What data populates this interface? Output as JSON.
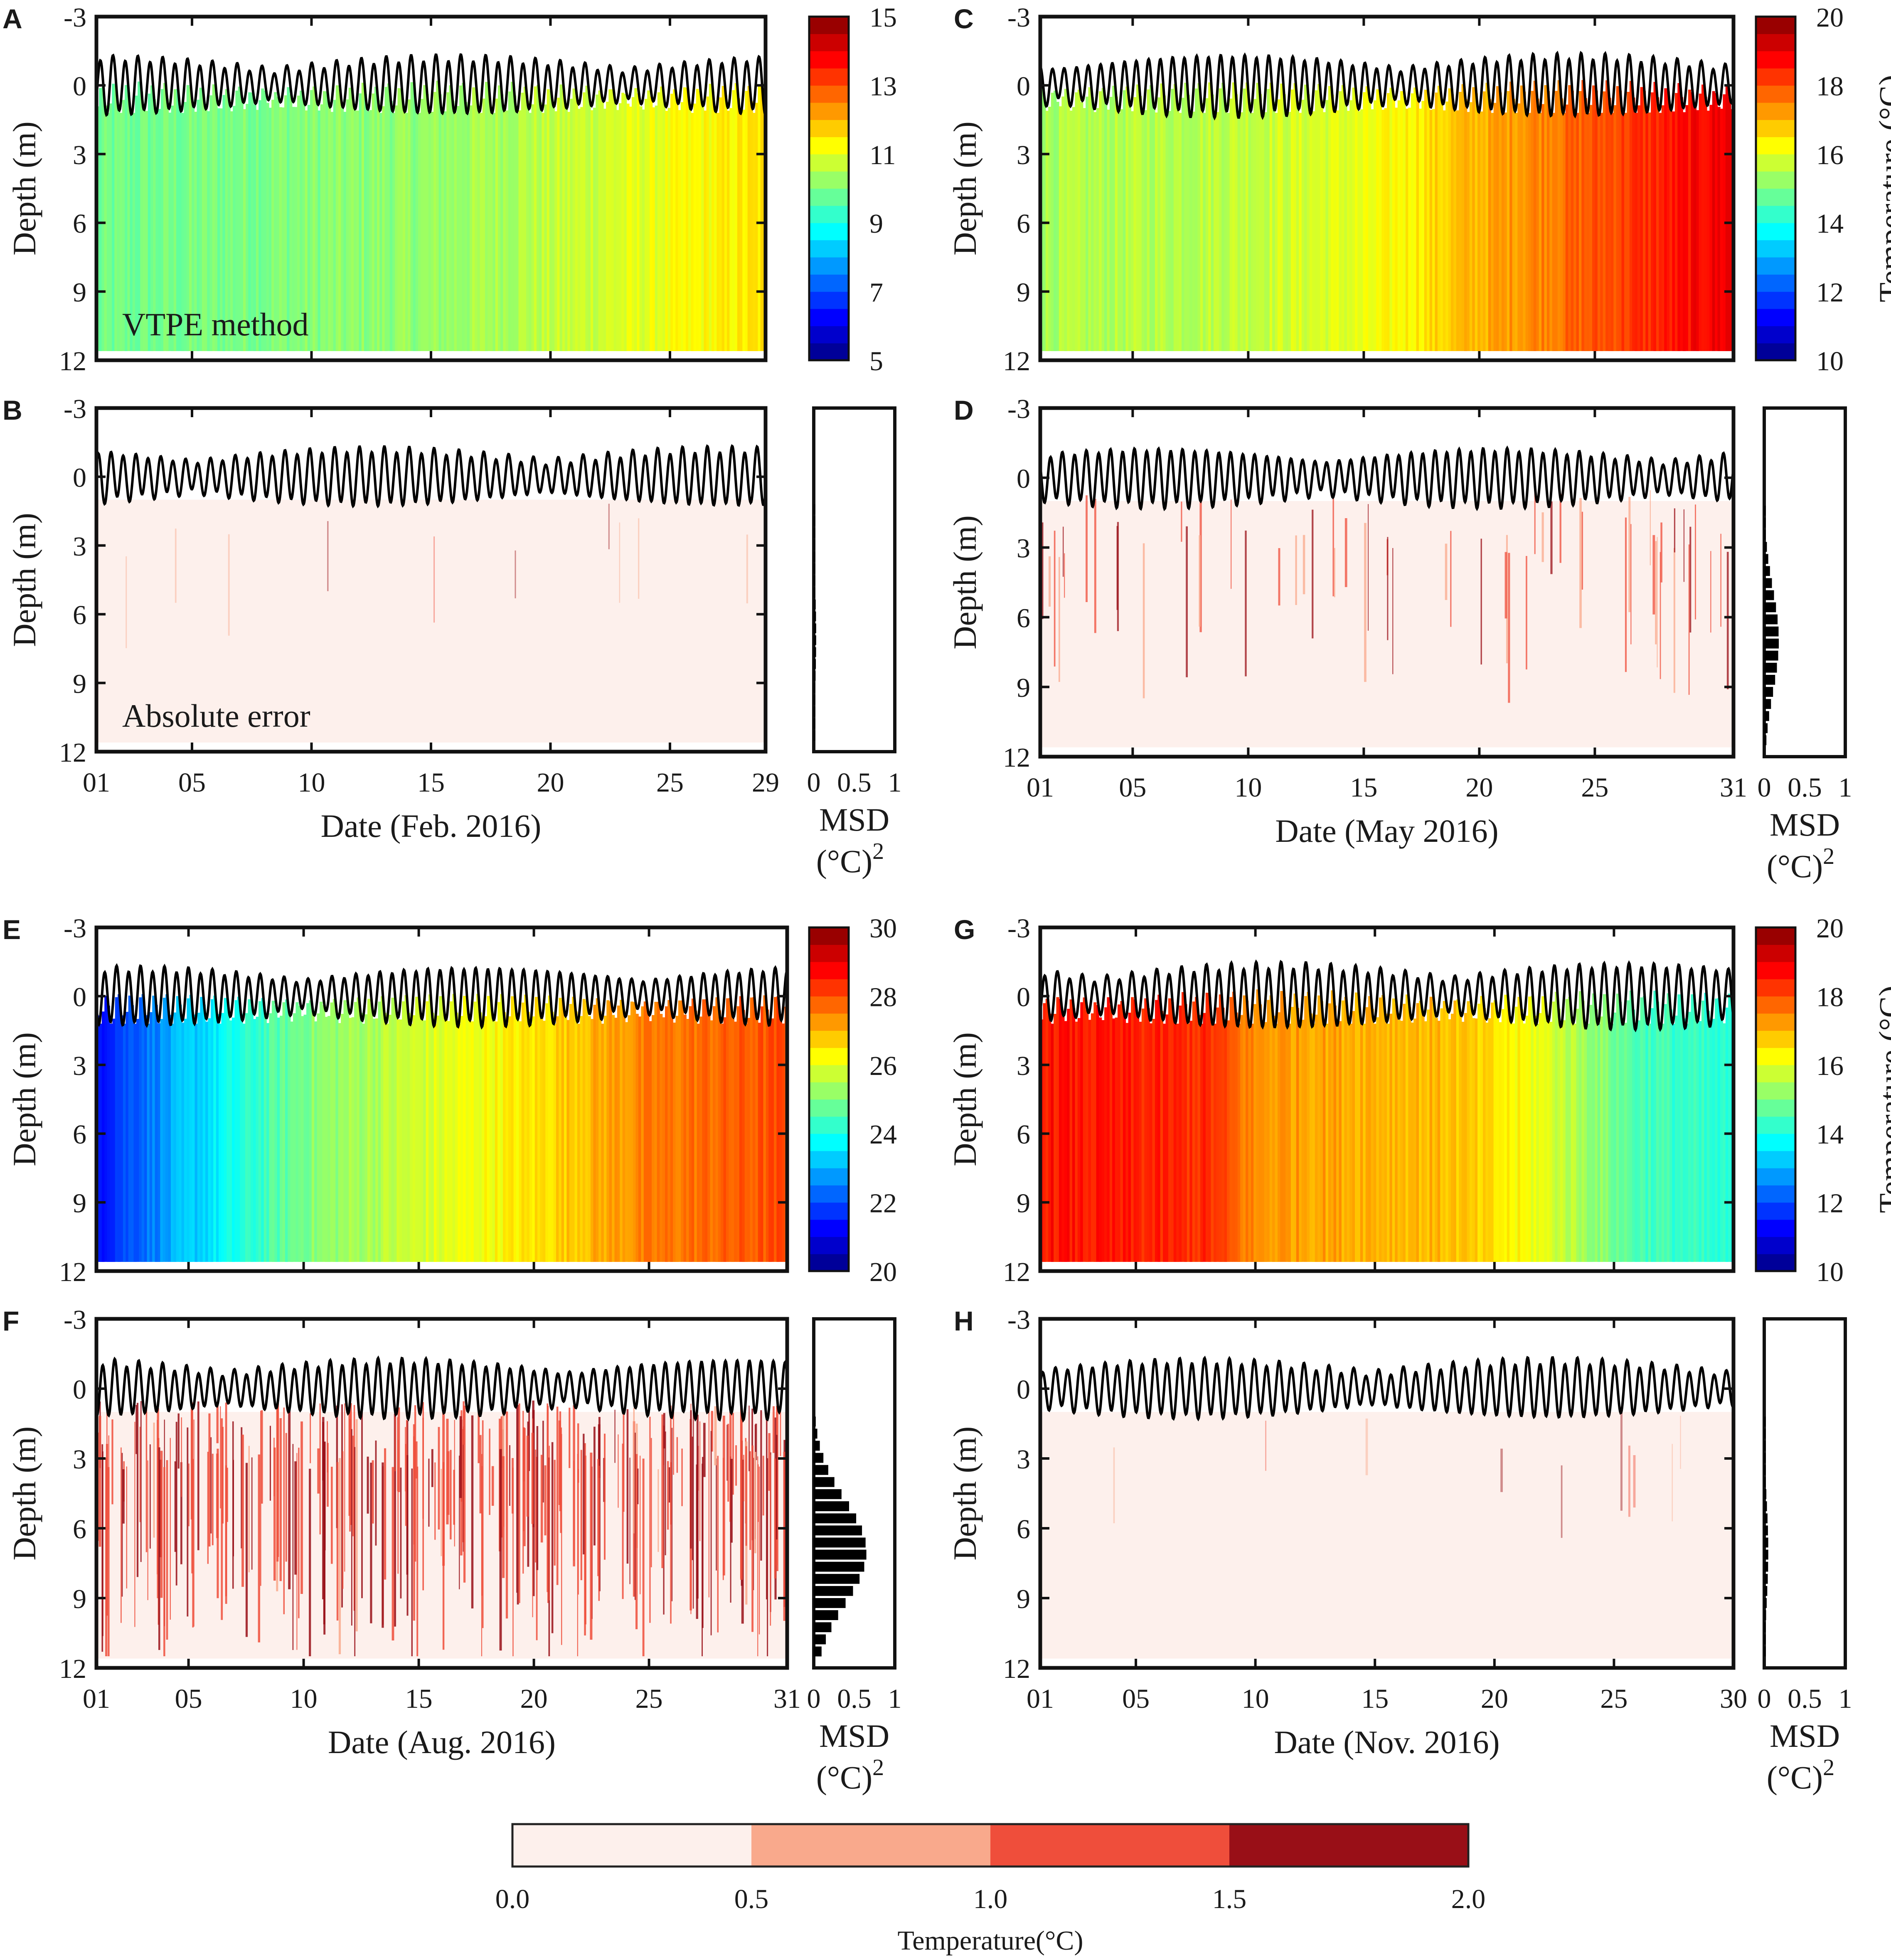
{
  "figure": {
    "depth_ylabel": "Depth (m)",
    "temperature_label": "Temperature (°C)",
    "msd_label": "MSD",
    "msd_unit": "(°C)",
    "msd_unit_exp": "2",
    "msd_ticks": [
      "0",
      "0.5",
      "1"
    ],
    "depth_ticks": [
      "-3",
      "0",
      "3",
      "6",
      "9",
      "12"
    ],
    "annotation_top": "VTPE method",
    "annotation_bottom": "Absolute error"
  },
  "error_colorbar": {
    "label": "Temperature(°C)",
    "ticks": [
      "0.0",
      "0.5",
      "1.0",
      "1.5",
      "2.0"
    ],
    "colors": [
      "#fdf0ec",
      "#f9a98c",
      "#ef4e3b",
      "#990f17"
    ]
  },
  "chart_data": [
    {
      "panel": "A",
      "type": "heatmap",
      "month": "Feb. 2016",
      "days": 29,
      "xlabel": "Date (Feb. 2016)",
      "ylabel": "Depth (m)",
      "ylim": [
        -3,
        12
      ],
      "xticks": [
        "01",
        "05",
        "10",
        "15",
        "20",
        "25",
        "29"
      ],
      "colorbar": {
        "range": [
          5,
          15
        ],
        "ticks": [
          "15",
          "13",
          "11",
          "9",
          "7",
          "5"
        ],
        "label": ""
      },
      "temperature_profile": {
        "days": [
          1,
          8,
          15,
          22,
          29
        ],
        "temp": [
          9.8,
          10.0,
          10.2,
          10.8,
          11.5
        ]
      },
      "tide_amplitude_m": 1.6
    },
    {
      "panel": "B",
      "type": "heatmap",
      "metric": "absolute error",
      "month": "Feb. 2016",
      "days": 29,
      "xlabel": "Date (Feb. 2016)",
      "ylabel": "Depth (m)",
      "ylim": [
        -3,
        12
      ],
      "xticks": [
        "01",
        "05",
        "10",
        "15",
        "20",
        "25",
        "29"
      ],
      "error_level": "low",
      "msd_max": 0.03
    },
    {
      "panel": "C",
      "type": "heatmap",
      "month": "May 2016",
      "days": 31,
      "xlabel": "Date (May 2016)",
      "ylabel": "Depth (m)",
      "ylim": [
        -3,
        12
      ],
      "xticks": [
        "01",
        "05",
        "10",
        "15",
        "20",
        "25",
        "31"
      ],
      "colorbar": {
        "range": [
          10,
          20
        ],
        "ticks": [
          "20",
          "18",
          "16",
          "14",
          "12",
          "10"
        ],
        "label": "Temperature (°C)"
      },
      "temperature_profile": {
        "days": [
          1,
          8,
          15,
          22,
          31
        ],
        "temp": [
          15.4,
          15.6,
          16.0,
          17.4,
          19.0
        ]
      },
      "tide_amplitude_m": 1.7
    },
    {
      "panel": "D",
      "type": "heatmap",
      "metric": "absolute error",
      "month": "May 2016",
      "days": 31,
      "xlabel": "Date (May 2016)",
      "ylabel": "Depth (m)",
      "ylim": [
        -3,
        12
      ],
      "xticks": [
        "01",
        "05",
        "10",
        "15",
        "20",
        "25",
        "31"
      ],
      "error_level": "medium",
      "msd_max": 0.18
    },
    {
      "panel": "E",
      "type": "heatmap",
      "month": "Aug. 2016",
      "days": 31,
      "xlabel": "Date (Aug. 2016)",
      "ylabel": "Depth (m)",
      "ylim": [
        -3,
        12
      ],
      "xticks": [
        "01",
        "05",
        "10",
        "15",
        "20",
        "25",
        "31"
      ],
      "colorbar": {
        "range": [
          20,
          30
        ],
        "ticks": [
          "30",
          "28",
          "26",
          "24",
          "22",
          "20"
        ],
        "label": ""
      },
      "temperature_profile": {
        "days": [
          1,
          5,
          10,
          15,
          20,
          25,
          31
        ],
        "temp": [
          21.5,
          23.2,
          25.0,
          25.8,
          26.5,
          27.5,
          28.0
        ]
      },
      "tide_amplitude_m": 1.6
    },
    {
      "panel": "F",
      "type": "heatmap",
      "metric": "absolute error",
      "month": "Aug. 2016",
      "days": 31,
      "xlabel": "Date (Aug. 2016)",
      "ylabel": "Depth (m)",
      "ylim": [
        -3,
        12
      ],
      "xticks": [
        "01",
        "05",
        "10",
        "15",
        "20",
        "25",
        "31"
      ],
      "error_level": "high",
      "msd_max": 0.65
    },
    {
      "panel": "G",
      "type": "heatmap",
      "month": "Nov. 2016",
      "days": 30,
      "xlabel": "Date (Nov. 2016)",
      "ylabel": "Depth (m)",
      "ylim": [
        -3,
        12
      ],
      "xticks": [
        "01",
        "05",
        "10",
        "15",
        "20",
        "25",
        "30"
      ],
      "colorbar": {
        "range": [
          10,
          20
        ],
        "ticks": [
          "20",
          "18",
          "16",
          "14",
          "12",
          "10"
        ],
        "label": "Temperature (°C)"
      },
      "temperature_profile": {
        "days": [
          1,
          8,
          10,
          18,
          22,
          26,
          30
        ],
        "temp": [
          18.6,
          18.3,
          17.3,
          16.9,
          16.0,
          14.5,
          14.0
        ]
      },
      "tide_amplitude_m": 1.8
    },
    {
      "panel": "H",
      "type": "heatmap",
      "metric": "absolute error",
      "month": "Nov. 2016",
      "days": 30,
      "xlabel": "Date (Nov. 2016)",
      "ylabel": "Depth (m)",
      "ylim": [
        -3,
        12
      ],
      "xticks": [
        "01",
        "05",
        "10",
        "15",
        "20",
        "25",
        "30"
      ],
      "error_level": "low",
      "msd_max": 0.05
    }
  ]
}
